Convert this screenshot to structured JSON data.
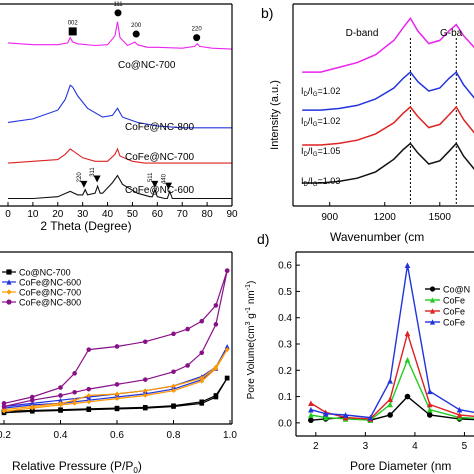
{
  "chart_data": [
    {
      "panel": "a",
      "type": "line",
      "xlabel": "2 Theta (Degree)",
      "xlim": [
        0,
        90
      ],
      "xticks": [
        0,
        10,
        20,
        30,
        40,
        50,
        60,
        70,
        80,
        90
      ],
      "series": [
        {
          "name": "Co@NC-700",
          "color": "#ee22ee",
          "x": [
            0,
            10,
            20,
            24,
            25,
            26,
            28,
            35,
            40,
            43,
            44,
            45,
            48,
            51,
            52,
            56,
            60,
            70,
            75,
            76,
            77,
            82,
            90
          ],
          "y": [
            0.9,
            0.89,
            0.89,
            0.9,
            0.93,
            0.905,
            0.895,
            0.885,
            0.89,
            0.94,
            1.02,
            0.93,
            0.885,
            0.905,
            0.89,
            0.875,
            0.875,
            0.87,
            0.88,
            0.895,
            0.88,
            0.87,
            0.865
          ]
        },
        {
          "name": "CoFe@NC-800",
          "color": "#2233dd",
          "x": [
            0,
            10,
            20,
            23,
            25,
            26,
            28,
            32,
            38,
            42,
            44,
            46,
            52,
            60,
            70,
            80,
            90
          ],
          "y": [
            0.45,
            0.47,
            0.52,
            0.58,
            0.66,
            0.65,
            0.6,
            0.53,
            0.48,
            0.49,
            0.53,
            0.48,
            0.45,
            0.43,
            0.42,
            0.42,
            0.42
          ]
        },
        {
          "name": "CoFe@NC-700",
          "color": "#dd2222",
          "x": [
            0,
            10,
            20,
            23,
            25,
            26,
            30,
            35,
            40,
            43,
            44,
            45,
            50,
            55,
            60,
            70,
            80,
            90
          ],
          "y": [
            0.22,
            0.23,
            0.24,
            0.27,
            0.3,
            0.29,
            0.25,
            0.23,
            0.23,
            0.27,
            0.3,
            0.26,
            0.23,
            0.22,
            0.22,
            0.22,
            0.22,
            0.22
          ]
        },
        {
          "name": "CoFe@NC-600",
          "color": "#111111",
          "x": [
            0,
            10,
            20,
            25,
            28,
            30,
            31,
            32,
            35,
            36,
            37,
            38,
            42,
            44,
            46,
            52,
            57,
            58,
            59,
            60,
            63,
            64,
            65,
            66,
            70,
            80,
            90
          ],
          "y": [
            0.02,
            0.02,
            0.03,
            0.06,
            0.04,
            0.04,
            0.07,
            0.04,
            0.05,
            0.09,
            0.05,
            0.05,
            0.11,
            0.15,
            0.1,
            0.05,
            0.03,
            0.03,
            0.07,
            0.03,
            0.02,
            0.02,
            0.06,
            0.02,
            0.02,
            0.02,
            0.02
          ]
        }
      ],
      "markers": [
        {
          "symbol": "square",
          "x": 26,
          "y": 0.965,
          "label": "002"
        },
        {
          "symbol": "circle",
          "x": 44.2,
          "y": 1.07,
          "label": "111"
        },
        {
          "symbol": "circle",
          "x": 51.5,
          "y": 0.95,
          "label": "200"
        },
        {
          "symbol": "circle",
          "x": 75.8,
          "y": 0.93,
          "label": "220"
        },
        {
          "symbol": "triangle",
          "x": 30.5,
          "y": 0.1,
          "label": "220"
        },
        {
          "symbol": "triangle",
          "x": 35.8,
          "y": 0.13,
          "label": "311"
        },
        {
          "symbol": "triangle",
          "x": 59,
          "y": 0.1,
          "label": "511"
        },
        {
          "symbol": "triangle",
          "x": 64.5,
          "y": 0.09,
          "label": "440"
        }
      ]
    },
    {
      "panel": "b",
      "type": "line",
      "label": "b)",
      "xlabel": "Wavenumber (cm",
      "ylabel": "Intensity (a.u.)",
      "xlim": [
        700,
        1850
      ],
      "xticks": [
        900,
        1200,
        1500
      ],
      "vlines": [
        1340,
        1590
      ],
      "band_labels": [
        "D-band",
        "G-ba"
      ],
      "ratio_labels": [
        "I",
        "D",
        "/I",
        "G",
        "=1.02",
        "I",
        "D",
        "/I",
        "G",
        "=1.02",
        "I",
        "D",
        "/I",
        "G",
        "=1.05",
        "I",
        "D",
        "/I",
        "G",
        "=1.03"
      ],
      "series": [
        {
          "color": "#ee22ee",
          "x": [
            750,
            850,
            950,
            1050,
            1150,
            1250,
            1300,
            1340,
            1380,
            1440,
            1500,
            1550,
            1590,
            1630,
            1700,
            1780,
            1850
          ],
          "y": [
            0.82,
            0.82,
            0.85,
            0.88,
            0.93,
            1.02,
            1.1,
            1.16,
            1.08,
            1.0,
            1.02,
            1.08,
            1.12,
            1.05,
            0.96,
            0.9,
            0.88
          ]
        },
        {
          "color": "#2233dd",
          "x": [
            750,
            850,
            950,
            1050,
            1150,
            1250,
            1300,
            1340,
            1380,
            1440,
            1500,
            1550,
            1590,
            1630,
            1700,
            1780,
            1850
          ],
          "y": [
            0.58,
            0.58,
            0.59,
            0.61,
            0.65,
            0.72,
            0.78,
            0.82,
            0.76,
            0.7,
            0.72,
            0.78,
            0.82,
            0.74,
            0.64,
            0.59,
            0.57
          ]
        },
        {
          "color": "#dd2222",
          "x": [
            750,
            850,
            950,
            1050,
            1150,
            1250,
            1300,
            1340,
            1380,
            1440,
            1500,
            1550,
            1590,
            1630,
            1700,
            1780,
            1850
          ],
          "y": [
            0.36,
            0.36,
            0.37,
            0.39,
            0.43,
            0.5,
            0.56,
            0.6,
            0.54,
            0.47,
            0.49,
            0.55,
            0.6,
            0.52,
            0.42,
            0.37,
            0.35
          ]
        },
        {
          "color": "#111111",
          "x": [
            750,
            850,
            950,
            1050,
            1150,
            1250,
            1300,
            1340,
            1380,
            1440,
            1500,
            1550,
            1590,
            1630,
            1700,
            1780,
            1850
          ],
          "y": [
            0.12,
            0.12,
            0.13,
            0.15,
            0.19,
            0.27,
            0.33,
            0.37,
            0.31,
            0.24,
            0.26,
            0.32,
            0.37,
            0.29,
            0.19,
            0.14,
            0.12
          ]
        }
      ]
    },
    {
      "panel": "c",
      "type": "line",
      "xlabel": "Relative Pressure (P/P",
      "xlabel_sub": "0",
      "xlabel_end": ")",
      "xlim": [
        0.2,
        1.0
      ],
      "xticks": [
        "0.2",
        "0.4",
        "0.6",
        "0.8",
        "1.0"
      ],
      "ylim": [
        0,
        1
      ],
      "legend_position": "top-left",
      "series": [
        {
          "name": "Co@NC-700",
          "color": "#000000",
          "marker": "square",
          "x": [
            0.2,
            0.3,
            0.4,
            0.5,
            0.6,
            0.7,
            0.8,
            0.9,
            0.95,
            0.99,
            0.99,
            0.95,
            0.9,
            0.8,
            0.7,
            0.6,
            0.5,
            0.4,
            0.3,
            0.2
          ],
          "y": [
            0.02,
            0.03,
            0.035,
            0.04,
            0.045,
            0.05,
            0.06,
            0.08,
            0.12,
            0.24,
            0.24,
            0.13,
            0.09,
            0.065,
            0.055,
            0.05,
            0.045,
            0.04,
            0.035,
            0.03
          ]
        },
        {
          "name": "CoFe@NC-600",
          "color": "#2233dd",
          "marker": "triangle",
          "x": [
            0.2,
            0.3,
            0.4,
            0.5,
            0.6,
            0.7,
            0.8,
            0.9,
            0.95,
            0.99,
            0.99,
            0.95,
            0.9,
            0.8,
            0.7,
            0.6,
            0.5,
            0.4,
            0.3,
            0.2
          ],
          "y": [
            0.05,
            0.07,
            0.08,
            0.1,
            0.12,
            0.14,
            0.17,
            0.23,
            0.3,
            0.44,
            0.44,
            0.31,
            0.25,
            0.19,
            0.16,
            0.14,
            0.12,
            0.1,
            0.08,
            0.06
          ]
        },
        {
          "name": "CoFe@NC-700",
          "color": "#ff9900",
          "marker": "diamond",
          "x": [
            0.2,
            0.3,
            0.4,
            0.45,
            0.5,
            0.6,
            0.7,
            0.8,
            0.9,
            0.95,
            0.99,
            0.99,
            0.95,
            0.9,
            0.8,
            0.7,
            0.6,
            0.5,
            0.45,
            0.4,
            0.3,
            0.2
          ],
          "y": [
            0.03,
            0.05,
            0.07,
            0.08,
            0.09,
            0.11,
            0.13,
            0.16,
            0.22,
            0.3,
            0.42,
            0.42,
            0.31,
            0.24,
            0.19,
            0.16,
            0.14,
            0.13,
            0.1,
            0.08,
            0.06,
            0.04
          ]
        },
        {
          "name": "CoFe@NC-800",
          "color": "#881188",
          "marker": "circle",
          "x": [
            0.2,
            0.3,
            0.4,
            0.45,
            0.5,
            0.6,
            0.7,
            0.8,
            0.85,
            0.9,
            0.95,
            0.99,
            0.99,
            0.95,
            0.9,
            0.85,
            0.8,
            0.7,
            0.6,
            0.5,
            0.45,
            0.4,
            0.3,
            0.2
          ],
          "y": [
            0.06,
            0.1,
            0.13,
            0.15,
            0.17,
            0.2,
            0.23,
            0.28,
            0.32,
            0.4,
            0.58,
            0.92,
            0.92,
            0.7,
            0.6,
            0.55,
            0.52,
            0.47,
            0.44,
            0.42,
            0.27,
            0.18,
            0.12,
            0.08
          ]
        }
      ]
    },
    {
      "panel": "d",
      "type": "line",
      "label": "d)",
      "xlabel": "Pore Diameter (nm",
      "ylabel": "Pore Volume(cm",
      "ylabel_parts": [
        "Pore Volume(cm",
        "3",
        " g",
        "-1",
        " nm",
        "-1",
        ")"
      ],
      "xlim": [
        1.6,
        6.0
      ],
      "ylim": [
        -0.05,
        0.65
      ],
      "xticks": [
        2,
        3,
        4,
        5
      ],
      "yticks": [
        "0.0",
        "0.1",
        "0.2",
        "0.3",
        "0.4",
        "0.5",
        "0.6"
      ],
      "legend_position": "right",
      "series": [
        {
          "name": "Co@N",
          "color": "#000000",
          "marker": "circle",
          "x": [
            1.9,
            2.2,
            2.6,
            3.1,
            3.5,
            3.85,
            4.3,
            4.9,
            5.5,
            6.0
          ],
          "y": [
            0.01,
            0.015,
            0.02,
            0.01,
            0.03,
            0.1,
            0.03,
            0.015,
            0.01,
            0.005
          ]
        },
        {
          "name": "CoFe",
          "color": "#22cc22",
          "marker": "triangle",
          "x": [
            1.9,
            2.2,
            2.6,
            3.1,
            3.5,
            3.85,
            4.3,
            4.9,
            5.5,
            6.0
          ],
          "y": [
            0.03,
            0.02,
            0.015,
            0.01,
            0.07,
            0.24,
            0.05,
            0.02,
            0.015,
            0.01
          ]
        },
        {
          "name": "CoFe",
          "color": "#dd2222",
          "marker": "triangle",
          "x": [
            1.9,
            2.2,
            2.6,
            3.1,
            3.5,
            3.85,
            4.3,
            4.9,
            5.5,
            6.0
          ],
          "y": [
            0.075,
            0.04,
            0.02,
            0.015,
            0.09,
            0.34,
            0.07,
            0.03,
            0.02,
            0.015
          ]
        },
        {
          "name": "CoFe",
          "color": "#2233dd",
          "marker": "triangle",
          "x": [
            1.9,
            2.2,
            2.6,
            3.1,
            3.5,
            3.85,
            4.3,
            4.9,
            5.5,
            6.0
          ],
          "y": [
            0.05,
            0.035,
            0.03,
            0.02,
            0.16,
            0.6,
            0.12,
            0.05,
            0.03,
            0.02
          ]
        }
      ]
    }
  ]
}
